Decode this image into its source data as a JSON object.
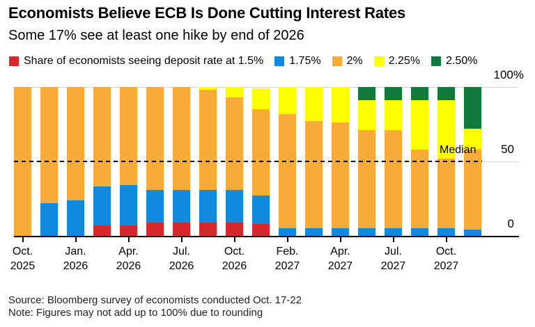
{
  "header": {
    "title": "Economists Believe ECB Is Done Cutting Interest Rates",
    "subtitle": "Some 17% see at least one hike by end of 2026"
  },
  "chart_data": {
    "type": "bar",
    "stacked": true,
    "unit": "%",
    "ylim": [
      0,
      100
    ],
    "grid": "horizontal",
    "legend_position": "top",
    "categories": [
      {
        "month": "Oct.",
        "year": "2025",
        "tick": true
      },
      {
        "month": "",
        "year": "",
        "tick": false
      },
      {
        "month": "Jan.",
        "year": "2026",
        "tick": true
      },
      {
        "month": "",
        "year": "",
        "tick": false
      },
      {
        "month": "Apr.",
        "year": "2026",
        "tick": true
      },
      {
        "month": "",
        "year": "",
        "tick": false
      },
      {
        "month": "Jul.",
        "year": "2026",
        "tick": true
      },
      {
        "month": "",
        "year": "",
        "tick": false
      },
      {
        "month": "Oct.",
        "year": "2026",
        "tick": true
      },
      {
        "month": "",
        "year": "",
        "tick": false
      },
      {
        "month": "Feb.",
        "year": "2027",
        "tick": true
      },
      {
        "month": "",
        "year": "",
        "tick": false
      },
      {
        "month": "Apr.",
        "year": "2027",
        "tick": true
      },
      {
        "month": "",
        "year": "",
        "tick": false
      },
      {
        "month": "Jul.",
        "year": "2027",
        "tick": true
      },
      {
        "month": "",
        "year": "",
        "tick": false
      },
      {
        "month": "Oct.",
        "year": "2027",
        "tick": true
      },
      {
        "month": "",
        "year": "",
        "tick": false
      }
    ],
    "series": [
      {
        "name": "1.5%",
        "legend_label": "Share of economists seeing deposit rate at 1.5%",
        "color": "#d7282d",
        "values": [
          0,
          0,
          0,
          7,
          7,
          9,
          9,
          9,
          9,
          8,
          0,
          0,
          0,
          0,
          0,
          0,
          0,
          0
        ]
      },
      {
        "name": "1.75%",
        "legend_label": "1.75%",
        "color": "#0f8ade",
        "values": [
          0,
          22,
          24,
          26,
          27,
          22,
          22,
          22,
          22,
          19,
          5,
          5,
          5,
          5,
          5,
          5,
          5,
          4
        ]
      },
      {
        "name": "2%",
        "legend_label": "2%",
        "color": "#f9ab38",
        "values": [
          100,
          78,
          76,
          67,
          66,
          69,
          69,
          67,
          62,
          58,
          77,
          72,
          71,
          66,
          66,
          53,
          47,
          54
        ]
      },
      {
        "name": "2.25%",
        "legend_label": "2.25%",
        "color": "#fdfe00",
        "values": [
          0,
          0,
          0,
          0,
          0,
          0,
          0,
          2,
          7,
          14,
          18,
          23,
          24,
          20,
          20,
          33,
          39,
          14
        ]
      },
      {
        "name": "2.50%",
        "legend_label": "2.50%",
        "color": "#117a3d",
        "values": [
          0,
          0,
          0,
          0,
          0,
          0,
          0,
          0,
          0,
          0,
          0,
          0,
          0,
          9,
          9,
          9,
          9,
          28
        ]
      }
    ],
    "yticks": [
      {
        "label": "100%",
        "value": 100
      },
      {
        "label": "50",
        "value": 50
      },
      {
        "label": "0",
        "value": 0
      }
    ],
    "median_line": {
      "label": "Median",
      "value": 50,
      "style": "dashed"
    }
  },
  "footer": {
    "source": "Source: Bloomberg survey of economists conducted Oct. 17-22",
    "note": "Note: Figures may not add up to 100% due to rounding"
  }
}
